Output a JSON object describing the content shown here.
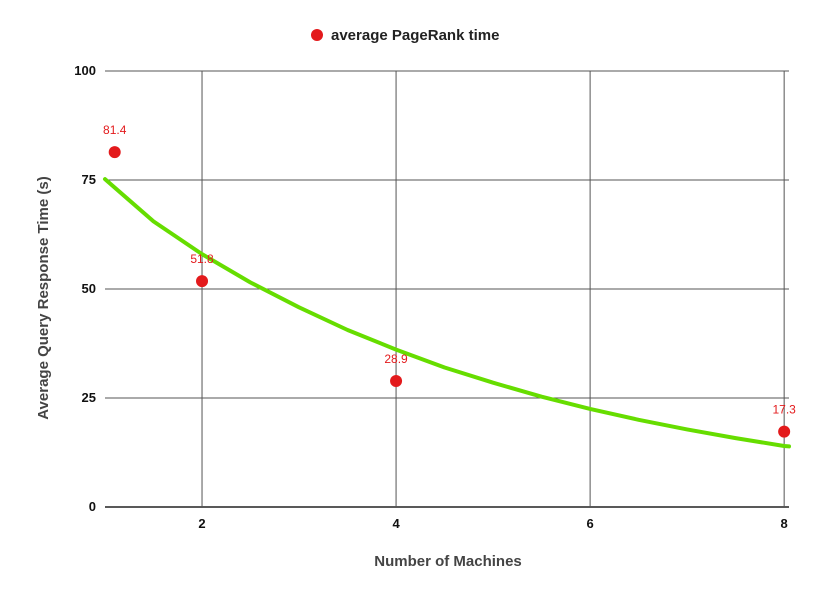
{
  "chart_data": {
    "type": "scatter",
    "xlabel": "Number of Machines",
    "ylabel": "Average Query Response Time (s)",
    "xlim": [
      1,
      8.05
    ],
    "ylim": [
      0,
      100
    ],
    "xticks": [
      2,
      4,
      6,
      8
    ],
    "yticks": [
      0,
      25,
      50,
      75,
      100
    ],
    "grid": true,
    "legend_position": "top",
    "colors": {
      "points": "#e31a1c",
      "trend": "#66dd00",
      "grid": "#555555"
    },
    "series": [
      {
        "name": "average PageRank time",
        "x": [
          1.1,
          2,
          4,
          8
        ],
        "y": [
          81.4,
          51.8,
          28.9,
          17.3
        ],
        "labels": [
          "81.4",
          "51.8",
          "28.9",
          "17.3"
        ]
      }
    ],
    "trendline": {
      "type": "exponential",
      "x": [
        1,
        1.5,
        2,
        2.5,
        3,
        3.5,
        4,
        4.5,
        5,
        5.5,
        6,
        6.5,
        7,
        7.5,
        8,
        8.05
      ],
      "y": [
        75.2,
        65.5,
        58.0,
        51.5,
        45.8,
        40.6,
        36.1,
        32.0,
        28.5,
        25.3,
        22.5,
        20.0,
        17.8,
        15.8,
        14.0,
        13.9
      ]
    }
  }
}
